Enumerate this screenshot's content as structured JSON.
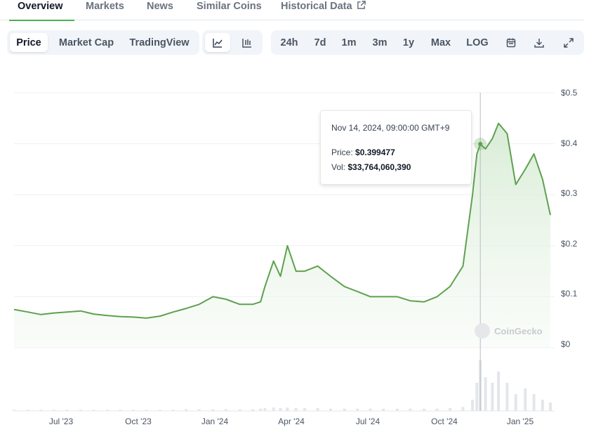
{
  "tabs": [
    {
      "label": "Overview",
      "active": true
    },
    {
      "label": "Markets",
      "active": false
    },
    {
      "label": "News",
      "active": false
    },
    {
      "label": "Similar Coins",
      "active": false
    },
    {
      "label": "Historical Data",
      "active": false
    }
  ],
  "toolbar": {
    "views": [
      "Price",
      "Market Cap",
      "TradingView"
    ],
    "active_view": "Price",
    "chart_types": [
      "line-chart-icon",
      "candlestick-icon"
    ],
    "ranges": [
      "24h",
      "7d",
      "1m",
      "3m",
      "1y",
      "Max",
      "LOG"
    ],
    "actions": [
      "calendar-icon",
      "download-icon",
      "expand-icon"
    ]
  },
  "tooltip": {
    "date": "Nov 14, 2024, 09:00:00 GMT+9",
    "price_label": "Price:",
    "price_value": "$0.399477",
    "vol_label": "Vol:",
    "vol_value": "$33,764,060,390"
  },
  "watermark": "CoinGecko",
  "colors": {
    "line": "#5ea14f",
    "fill": "#e8f5e9",
    "accent": "#4caf50"
  },
  "chart_data": {
    "type": "area",
    "title": "",
    "xlabel": "",
    "ylabel": "",
    "y_ticks": [
      "$0.5",
      "$0.4",
      "$0.3",
      "$0.2",
      "$0.1",
      "$0"
    ],
    "x_ticks": [
      "Jul '23",
      "Oct '23",
      "Jan '24",
      "Apr '24",
      "Jul '24",
      "Oct '24",
      "Jan '25"
    ],
    "ylim": [
      0,
      0.5
    ],
    "x": [
      "2023-05-25",
      "2023-06-10",
      "2023-06-25",
      "2023-07-10",
      "2023-07-25",
      "2023-08-10",
      "2023-08-25",
      "2023-09-10",
      "2023-09-25",
      "2023-10-10",
      "2023-10-25",
      "2023-11-10",
      "2023-11-25",
      "2023-12-10",
      "2023-12-25",
      "2024-01-10",
      "2024-01-25",
      "2024-02-10",
      "2024-02-25",
      "2024-03-05",
      "2024-03-10",
      "2024-03-20",
      "2024-03-28",
      "2024-04-05",
      "2024-04-15",
      "2024-04-25",
      "2024-05-10",
      "2024-05-25",
      "2024-06-10",
      "2024-06-25",
      "2024-07-10",
      "2024-07-25",
      "2024-08-10",
      "2024-08-25",
      "2024-09-10",
      "2024-09-25",
      "2024-10-10",
      "2024-10-25",
      "2024-11-05",
      "2024-11-10",
      "2024-11-14",
      "2024-11-20",
      "2024-11-28",
      "2024-12-05",
      "2024-12-15",
      "2024-12-25",
      "2025-01-05",
      "2025-01-15",
      "2025-01-25",
      "2025-02-03"
    ],
    "series": [
      {
        "values": [
          0.075,
          0.07,
          0.065,
          0.068,
          0.07,
          0.072,
          0.066,
          0.063,
          0.061,
          0.06,
          0.058,
          0.062,
          0.07,
          0.077,
          0.085,
          0.1,
          0.095,
          0.085,
          0.085,
          0.09,
          0.12,
          0.17,
          0.14,
          0.2,
          0.15,
          0.15,
          0.16,
          0.14,
          0.12,
          0.11,
          0.1,
          0.1,
          0.1,
          0.092,
          0.09,
          0.1,
          0.12,
          0.16,
          0.3,
          0.38,
          0.399,
          0.39,
          0.41,
          0.44,
          0.42,
          0.32,
          0.35,
          0.38,
          0.33,
          0.26
        ]
      },
      {
        "name": "Volume",
        "values": [
          0.02,
          0.02,
          0.02,
          0.02,
          0.02,
          0.02,
          0.02,
          0.02,
          0.02,
          0.02,
          0.02,
          0.02,
          0.02,
          0.03,
          0.03,
          0.03,
          0.03,
          0.03,
          0.03,
          0.04,
          0.05,
          0.06,
          0.05,
          0.06,
          0.05,
          0.05,
          0.05,
          0.04,
          0.04,
          0.04,
          0.04,
          0.04,
          0.04,
          0.04,
          0.04,
          0.04,
          0.05,
          0.07,
          0.2,
          0.5,
          0.9,
          0.6,
          0.5,
          0.7,
          0.5,
          0.3,
          0.4,
          0.3,
          0.2,
          0.15
        ]
      }
    ],
    "hover": {
      "date": "2024-11-14",
      "price": 0.399477,
      "volume": 33764060390
    },
    "grid": true
  }
}
